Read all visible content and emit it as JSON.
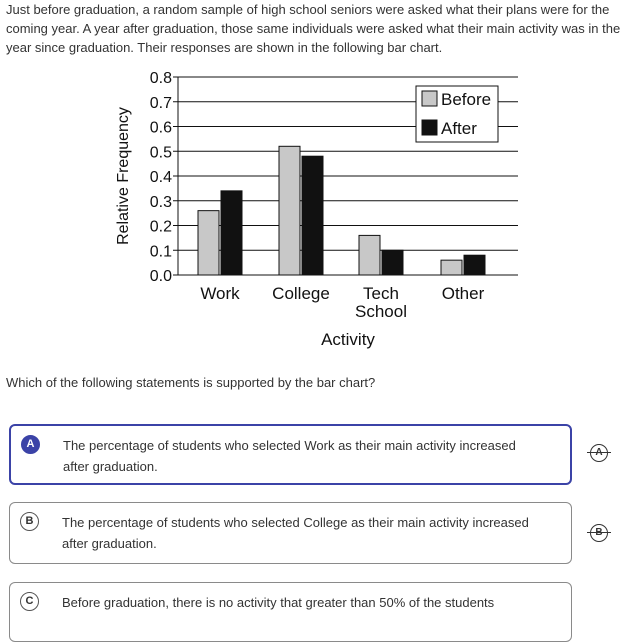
{
  "intro": "Just before graduation, a random sample of high school seniors were asked what their plans were for the coming year. A year after graduation, those same individuals were asked what their main activity was in the year since graduation. Their responses are shown in the following bar chart.",
  "question": "Which of the following statements is supported by the bar chart?",
  "choices": [
    {
      "letter": "A",
      "text": "The percentage of students who selected Work as their main activity increased after graduation.",
      "selected": true
    },
    {
      "letter": "B",
      "text": "The percentage of students who selected College as their main activity increased after graduation.",
      "selected": false
    },
    {
      "letter": "C",
      "text": "Before graduation, there is no activity that greater than 50% of the students",
      "selected": false
    }
  ],
  "colors": {
    "accent": "#3b43a7",
    "before": "#c8c8c8",
    "after": "#111111"
  },
  "chart_data": {
    "type": "bar",
    "categories": [
      "Work",
      "College",
      "Tech School",
      "Other"
    ],
    "category_lines": [
      [
        "Work"
      ],
      [
        "College"
      ],
      [
        "Tech",
        "School"
      ],
      [
        "Other"
      ]
    ],
    "series": [
      {
        "name": "Before",
        "values": [
          0.26,
          0.52,
          0.16,
          0.06
        ]
      },
      {
        "name": "After",
        "values": [
          0.34,
          0.48,
          0.1,
          0.08
        ]
      }
    ],
    "yticks": [
      "0.0",
      "0.1",
      "0.2",
      "0.3",
      "0.4",
      "0.5",
      "0.6",
      "0.7",
      "0.8"
    ],
    "ylim": [
      0,
      0.8
    ],
    "xlabel": "Activity",
    "ylabel": "Relative Frequency",
    "grid": true,
    "legend_position": "top-right"
  }
}
